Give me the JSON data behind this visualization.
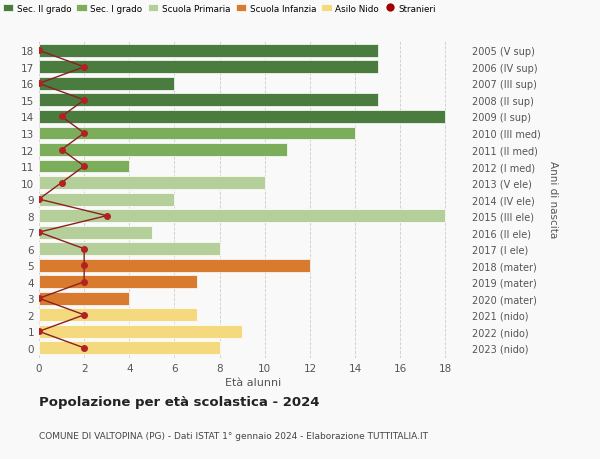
{
  "ages": [
    18,
    17,
    16,
    15,
    14,
    13,
    12,
    11,
    10,
    9,
    8,
    7,
    6,
    5,
    4,
    3,
    2,
    1,
    0
  ],
  "years": [
    "2005 (V sup)",
    "2006 (IV sup)",
    "2007 (III sup)",
    "2008 (II sup)",
    "2009 (I sup)",
    "2010 (III med)",
    "2011 (II med)",
    "2012 (I med)",
    "2013 (V ele)",
    "2014 (IV ele)",
    "2015 (III ele)",
    "2016 (II ele)",
    "2017 (I ele)",
    "2018 (mater)",
    "2019 (mater)",
    "2020 (mater)",
    "2021 (nido)",
    "2022 (nido)",
    "2023 (nido)"
  ],
  "bar_values": [
    15,
    15,
    6,
    15,
    18,
    14,
    11,
    4,
    10,
    6,
    18,
    5,
    8,
    12,
    7,
    4,
    7,
    9,
    8
  ],
  "bar_colors": [
    "#4a7c3f",
    "#4a7c3f",
    "#4a7c3f",
    "#4a7c3f",
    "#4a7c3f",
    "#7cad5b",
    "#7cad5b",
    "#7cad5b",
    "#b5cf9b",
    "#b5cf9b",
    "#b5cf9b",
    "#b5cf9b",
    "#b5cf9b",
    "#d97b2e",
    "#d97b2e",
    "#d97b2e",
    "#f5d97e",
    "#f5d97e",
    "#f5d97e"
  ],
  "stranieri_x": [
    0,
    2,
    0,
    2,
    1,
    2,
    1,
    2,
    1,
    0,
    3,
    0,
    2,
    2,
    2,
    0,
    2,
    0,
    2
  ],
  "title": "Popolazione per età scolastica - 2024",
  "subtitle": "COMUNE DI VALTOPINA (PG) - Dati ISTAT 1° gennaio 2024 - Elaborazione TUTTITALIA.IT",
  "xlabel": "Età alunni",
  "ylabel": "Anni di nascita",
  "legend_labels": [
    "Sec. II grado",
    "Sec. I grado",
    "Scuola Primaria",
    "Scuola Infanzia",
    "Asilo Nido",
    "Stranieri"
  ],
  "legend_colors": [
    "#4a7c3f",
    "#7cad5b",
    "#b5cf9b",
    "#d97b2e",
    "#f5d97e",
    "#a00000"
  ],
  "background_color": "#f9f9f9",
  "grid_color": "#cccccc",
  "bar_height": 0.78
}
